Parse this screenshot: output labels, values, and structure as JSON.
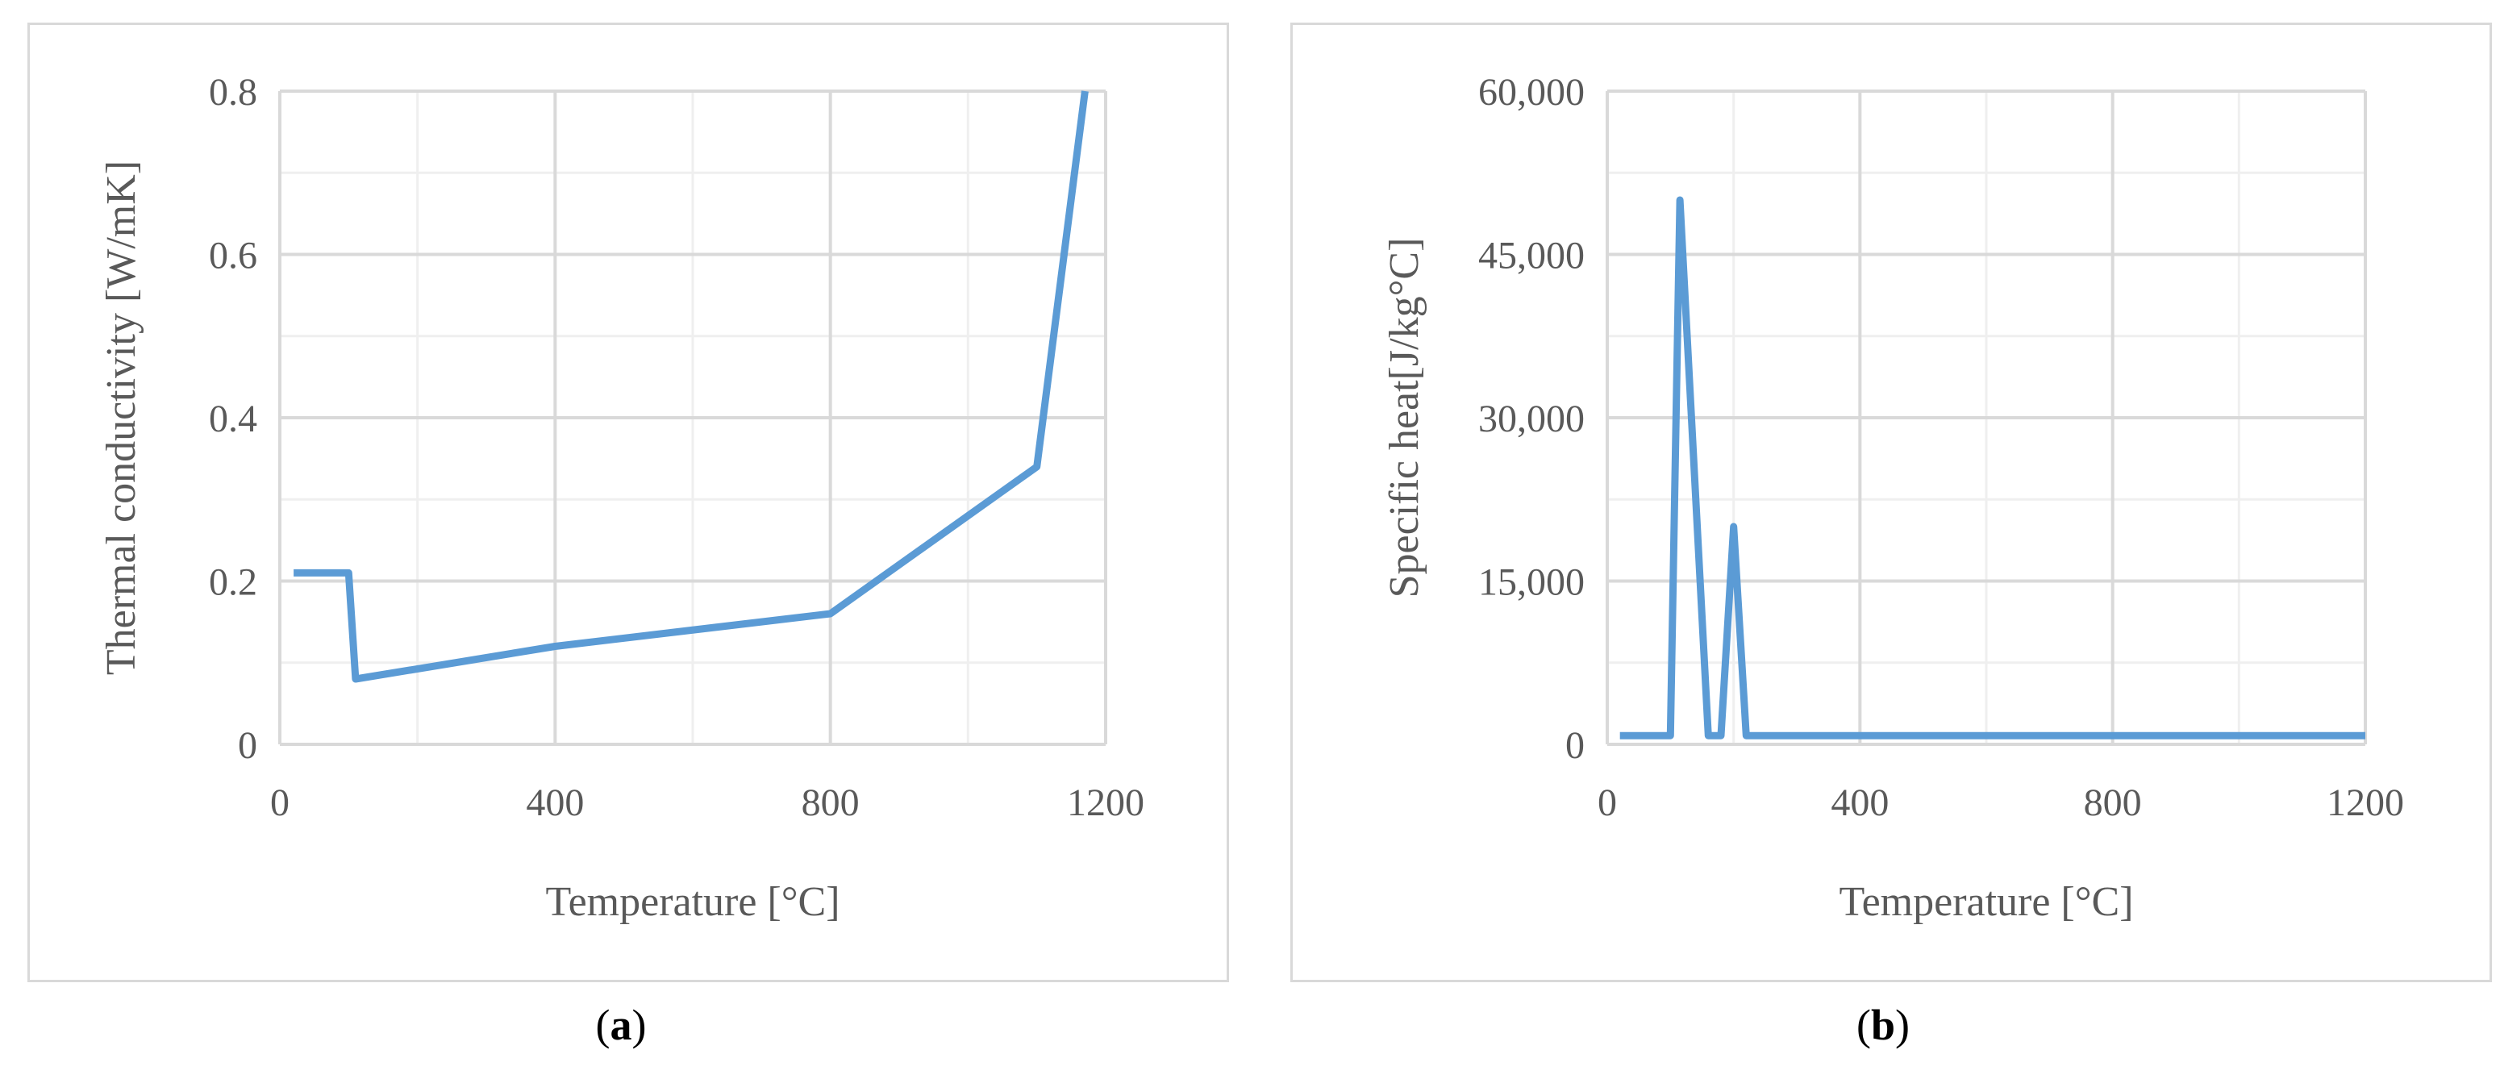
{
  "colors": {
    "series": "#5b9bd5",
    "grid_major": "#d9d9d9",
    "grid_minor": "#efefef",
    "frame": "#d9d9d9",
    "text": "#595959"
  },
  "captions": {
    "a": "a",
    "b": "b"
  },
  "chart_data": [
    {
      "type": "line",
      "panel": "a",
      "xlabel": "Temperature [°C]",
      "ylabel": "Thermal conductivity [W/mK]",
      "xlim": [
        0,
        1200
      ],
      "ylim": [
        0,
        0.8
      ],
      "xticks": [
        0,
        400,
        800,
        1200
      ],
      "xtick_labels": [
        "0",
        "400",
        "800",
        "1200"
      ],
      "yticks": [
        0,
        0.2,
        0.4,
        0.6,
        0.8
      ],
      "ytick_labels": [
        "0",
        "0.2",
        "0.4",
        "0.6",
        "0.8"
      ],
      "grid": true,
      "legend": "none",
      "series": [
        {
          "x": [
            20,
            100,
            110,
            400,
            800,
            1100,
            1170
          ],
          "y": [
            0.21,
            0.21,
            0.08,
            0.12,
            0.16,
            0.34,
            0.8
          ]
        }
      ]
    },
    {
      "type": "line",
      "panel": "b",
      "xlabel": "Temperature [°C]",
      "ylabel": "Specific heat[J/kg°C]",
      "xlim": [
        0,
        1200
      ],
      "ylim": [
        0,
        60000
      ],
      "xticks": [
        0,
        400,
        800,
        1200
      ],
      "xtick_labels": [
        "0",
        "400",
        "800",
        "1200"
      ],
      "yticks": [
        0,
        15000,
        30000,
        45000,
        60000
      ],
      "ytick_labels": [
        "0",
        "15,000",
        "30,000",
        "45,000",
        "60,000"
      ],
      "grid": true,
      "legend": "none",
      "series": [
        {
          "x": [
            20,
            100,
            115,
            160,
            180,
            200,
            220,
            1200
          ],
          "y": [
            800,
            800,
            50000,
            800,
            800,
            20000,
            800,
            800
          ]
        }
      ]
    }
  ]
}
